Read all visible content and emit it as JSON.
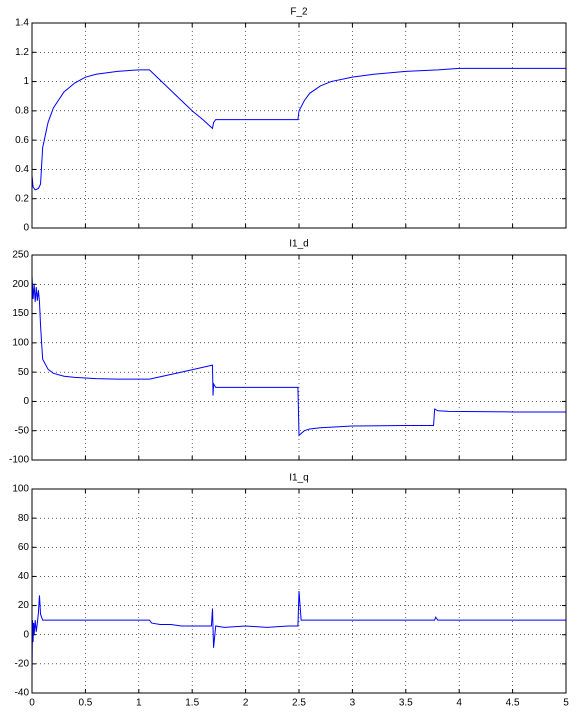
{
  "chart_data": [
    {
      "type": "line",
      "title": "F_2",
      "color": "#0000ff",
      "grid": true,
      "xtick_labels": false,
      "xlim": [
        0,
        5
      ],
      "ylim": [
        0,
        1.4
      ],
      "xticks": [
        0,
        0.5,
        1,
        1.5,
        2,
        2.5,
        3,
        3.5,
        4,
        4.5,
        5
      ],
      "yticks": [
        0,
        0.2,
        0.4,
        0.6,
        0.8,
        1,
        1.2,
        1.4
      ],
      "x": [
        0,
        0.01,
        0.03,
        0.06,
        0.08,
        0.1,
        0.15,
        0.2,
        0.3,
        0.4,
        0.5,
        0.6,
        0.8,
        1.0,
        1.1,
        1.2,
        1.3,
        1.4,
        1.5,
        1.6,
        1.69,
        1.7,
        1.72,
        2.0,
        2.49,
        2.5,
        2.55,
        2.6,
        2.7,
        2.8,
        3.0,
        3.2,
        3.5,
        3.8,
        4.0,
        4.5,
        5.0
      ],
      "values": [
        0.36,
        0.28,
        0.26,
        0.27,
        0.3,
        0.55,
        0.72,
        0.82,
        0.93,
        0.99,
        1.03,
        1.05,
        1.07,
        1.08,
        1.08,
        1.01,
        0.94,
        0.87,
        0.8,
        0.74,
        0.68,
        0.72,
        0.74,
        0.74,
        0.74,
        0.8,
        0.87,
        0.92,
        0.97,
        1.0,
        1.03,
        1.05,
        1.07,
        1.08,
        1.09,
        1.09,
        1.09
      ]
    },
    {
      "type": "line",
      "title": "I1_d",
      "color": "#0000ff",
      "grid": true,
      "xtick_labels": false,
      "xlim": [
        0,
        5
      ],
      "ylim": [
        -100,
        250
      ],
      "xticks": [
        0,
        0.5,
        1,
        1.5,
        2,
        2.5,
        3,
        3.5,
        4,
        4.5,
        5
      ],
      "yticks": [
        -100,
        -50,
        0,
        50,
        100,
        150,
        200,
        250
      ],
      "x": [
        0,
        0.01,
        0.02,
        0.03,
        0.04,
        0.05,
        0.06,
        0.07,
        0.08,
        0.09,
        0.1,
        0.15,
        0.2,
        0.3,
        0.4,
        0.6,
        0.8,
        1.1,
        1.4,
        1.69,
        1.695,
        1.7,
        1.72,
        2.0,
        2.49,
        2.5,
        2.55,
        2.6,
        2.7,
        3.0,
        3.5,
        3.76,
        3.77,
        3.8,
        3.9,
        4.5,
        5.0
      ],
      "values": [
        215,
        175,
        200,
        170,
        195,
        172,
        190,
        170,
        130,
        100,
        72,
        55,
        48,
        43,
        41,
        39,
        38,
        38,
        50,
        62,
        10,
        30,
        24,
        24,
        24,
        -58,
        -50,
        -47,
        -45,
        -42,
        -41,
        -41,
        -13,
        -16,
        -17,
        -18,
        -18
      ]
    },
    {
      "type": "line",
      "title": "I1_q",
      "color": "#0000ff",
      "grid": true,
      "xtick_labels": true,
      "xlim": [
        0,
        5
      ],
      "ylim": [
        -40,
        100
      ],
      "xticks": [
        0,
        0.5,
        1,
        1.5,
        2,
        2.5,
        3,
        3.5,
        4,
        4.5,
        5
      ],
      "yticks": [
        -40,
        -20,
        0,
        20,
        40,
        60,
        80,
        100
      ],
      "x": [
        0,
        0.005,
        0.01,
        0.015,
        0.02,
        0.03,
        0.04,
        0.05,
        0.06,
        0.07,
        0.08,
        0.1,
        0.5,
        1.1,
        1.12,
        1.2,
        1.3,
        1.4,
        1.5,
        1.6,
        1.68,
        1.69,
        1.7,
        1.72,
        1.8,
        2.0,
        2.2,
        2.4,
        2.49,
        2.5,
        2.52,
        3.0,
        3.77,
        3.78,
        3.8,
        4.5,
        5.0
      ],
      "values": [
        -28,
        10,
        -5,
        8,
        0,
        10,
        2,
        8,
        15,
        27,
        14,
        10,
        10,
        10,
        8,
        7,
        7,
        6,
        6,
        6,
        6,
        18,
        -9,
        6,
        5,
        6,
        5,
        6,
        6,
        30,
        10,
        10,
        10,
        12,
        10,
        10,
        10
      ]
    }
  ]
}
